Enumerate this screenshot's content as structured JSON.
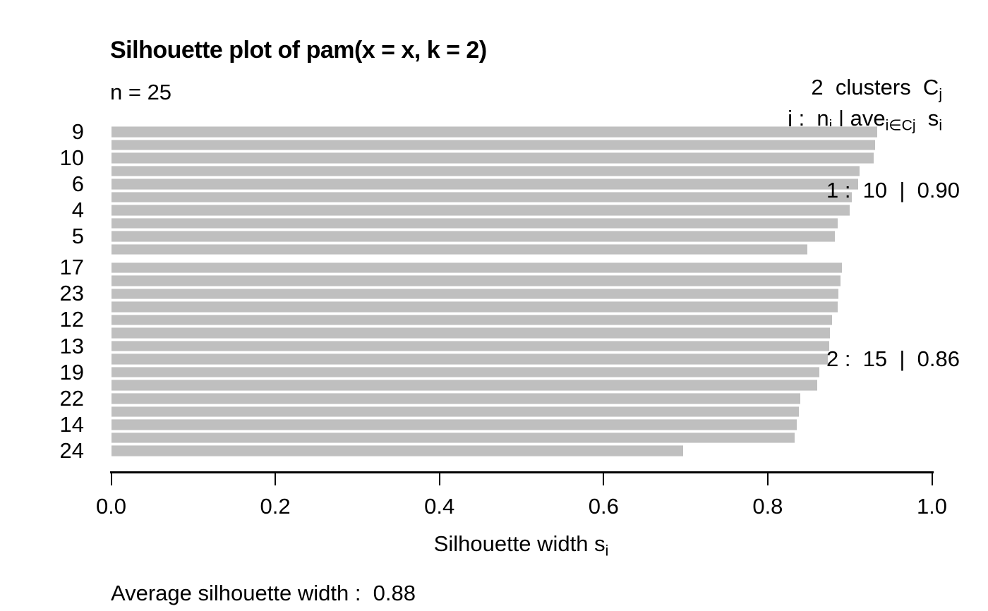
{
  "chart_data": {
    "type": "bar",
    "orientation": "horizontal",
    "title": "Silhouette plot of pam(x = x, k = 2)",
    "n_label": "n = 25",
    "legend_line1": [
      {
        "t": "2  clusters  C"
      },
      {
        "t": "j",
        "sub": true
      }
    ],
    "legend_line2": [
      {
        "t": "j :  n"
      },
      {
        "t": "j",
        "sub": true
      },
      {
        "t": " | ave"
      },
      {
        "t": "i∈Cj",
        "sub": true
      },
      {
        "t": "  s"
      },
      {
        "t": "i",
        "sub": true
      }
    ],
    "xlabel_segments": [
      {
        "t": "Silhouette width s"
      },
      {
        "t": "i",
        "sub": true
      }
    ],
    "xlim": [
      0,
      1
    ],
    "xticks": [
      {
        "value": 0.0,
        "label": "0.0"
      },
      {
        "value": 0.2,
        "label": "0.2"
      },
      {
        "value": 0.4,
        "label": "0.4"
      },
      {
        "value": 0.6,
        "label": "0.6"
      },
      {
        "value": 0.8,
        "label": "0.8"
      },
      {
        "value": 1.0,
        "label": "1.0"
      }
    ],
    "bar_color": "#bfbfbf",
    "grid": false,
    "clusters": [
      {
        "id": "1",
        "size": 10,
        "avg_width": "0.90",
        "annotation": "1 :  10  |  0.90",
        "bars": [
          {
            "label": "9",
            "value": 0.933
          },
          {
            "label": "",
            "value": 0.931
          },
          {
            "label": "10",
            "value": 0.929
          },
          {
            "label": "",
            "value": 0.912
          },
          {
            "label": "6",
            "value": 0.91
          },
          {
            "label": "",
            "value": 0.902
          },
          {
            "label": "4",
            "value": 0.9
          },
          {
            "label": "",
            "value": 0.885
          },
          {
            "label": "5",
            "value": 0.882
          },
          {
            "label": "",
            "value": 0.848
          }
        ]
      },
      {
        "id": "2",
        "size": 15,
        "avg_width": "0.86",
        "annotation": "2 :  15  |  0.86",
        "bars": [
          {
            "label": "17",
            "value": 0.89
          },
          {
            "label": "",
            "value": 0.889
          },
          {
            "label": "23",
            "value": 0.886
          },
          {
            "label": "",
            "value": 0.885
          },
          {
            "label": "12",
            "value": 0.878
          },
          {
            "label": "",
            "value": 0.876
          },
          {
            "label": "13",
            "value": 0.875
          },
          {
            "label": "",
            "value": 0.873
          },
          {
            "label": "19",
            "value": 0.863
          },
          {
            "label": "",
            "value": 0.86
          },
          {
            "label": "22",
            "value": 0.84
          },
          {
            "label": "",
            "value": 0.838
          },
          {
            "label": "14",
            "value": 0.835
          },
          {
            "label": "",
            "value": 0.833
          },
          {
            "label": "24",
            "value": 0.697
          }
        ]
      }
    ],
    "footer": "Average silhouette width :  0.88"
  }
}
